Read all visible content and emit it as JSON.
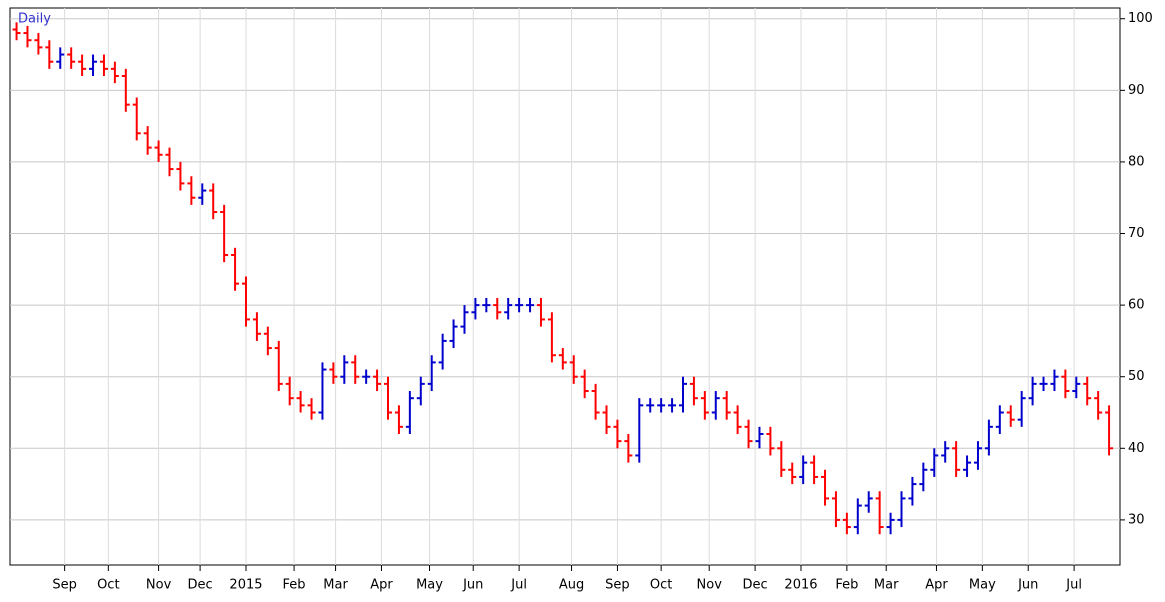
{
  "chart_data": {
    "type": "ohlc",
    "title": "Daily",
    "x": [
      0,
      5,
      10,
      15,
      20,
      25,
      30,
      35,
      40,
      45,
      50,
      55,
      60,
      65,
      70,
      75,
      80,
      85,
      90,
      95,
      100,
      105,
      110,
      115,
      120,
      125,
      130,
      135,
      140,
      145,
      150,
      155,
      160,
      165,
      170,
      175,
      180,
      185,
      190,
      195,
      200,
      205,
      210,
      215,
      220,
      225,
      230,
      235,
      240,
      245,
      250,
      255,
      260,
      265,
      270,
      275,
      280,
      285,
      290,
      295,
      300,
      305,
      310,
      315,
      320,
      325,
      330,
      335,
      340,
      345,
      350,
      355,
      360,
      365,
      370,
      375,
      380,
      385,
      390,
      395,
      400,
      405,
      410,
      415,
      420,
      425,
      430,
      435,
      440,
      445,
      450,
      455,
      460,
      465,
      470,
      475,
      480,
      485,
      490,
      495,
      500
    ],
    "open": [
      98.5,
      98,
      97,
      96,
      94,
      95,
      94,
      93,
      94,
      93,
      92,
      88,
      84,
      82,
      81,
      79,
      77,
      75,
      76,
      73,
      67,
      63,
      58,
      56,
      54,
      49,
      47,
      46,
      45,
      51,
      50,
      52,
      50,
      50,
      49,
      45,
      43,
      47,
      49,
      52,
      55,
      57,
      59,
      60,
      60,
      59,
      60,
      60,
      60,
      58,
      53,
      52,
      50,
      48,
      45,
      43,
      41,
      39,
      46,
      46,
      46,
      46,
      49,
      47,
      45,
      47,
      45,
      43,
      41,
      42,
      40,
      37,
      36,
      38,
      36,
      33,
      30,
      29,
      32,
      33,
      29,
      30,
      33,
      35,
      37,
      39,
      40,
      37,
      38,
      40,
      43,
      45,
      44,
      47,
      49,
      49,
      50,
      48,
      49,
      47,
      45
    ],
    "high": [
      99.5,
      99,
      98,
      97,
      96,
      96,
      95,
      95,
      95,
      94,
      93,
      89,
      85,
      83,
      82,
      80,
      78,
      77,
      77,
      74,
      68,
      64,
      59,
      57,
      55,
      50,
      48,
      47,
      52,
      52,
      53,
      53,
      51,
      51,
      50,
      46,
      48,
      50,
      53,
      56,
      58,
      60,
      61,
      61,
      61,
      61,
      61,
      61,
      61,
      59,
      54,
      53,
      51,
      49,
      46,
      44,
      42,
      47,
      47,
      47,
      47,
      50,
      50,
      48,
      48,
      48,
      46,
      44,
      43,
      43,
      41,
      38,
      39,
      39,
      37,
      34,
      31,
      33,
      34,
      34,
      31,
      34,
      36,
      38,
      40,
      41,
      41,
      39,
      41,
      44,
      46,
      46,
      48,
      50,
      50,
      51,
      51,
      50,
      50,
      48,
      46
    ],
    "low": [
      97,
      96,
      95,
      93,
      93,
      93,
      92,
      92,
      92,
      91,
      87,
      83,
      81,
      80,
      78,
      76,
      74,
      74,
      72,
      66,
      62,
      57,
      55,
      53,
      48,
      46,
      45,
      44,
      44,
      49,
      49,
      49,
      49,
      48,
      44,
      42,
      42,
      46,
      48,
      51,
      54,
      56,
      58,
      59,
      58,
      58,
      59,
      59,
      57,
      52,
      51,
      49,
      47,
      44,
      42,
      40,
      38,
      38,
      45,
      45,
      45,
      45,
      46,
      44,
      44,
      44,
      42,
      40,
      40,
      39,
      36,
      35,
      35,
      35,
      32,
      29,
      28,
      28,
      31,
      28,
      28,
      29,
      32,
      34,
      36,
      38,
      36,
      36,
      37,
      39,
      42,
      43,
      43,
      46,
      48,
      48,
      47,
      47,
      46,
      44,
      39
    ],
    "close": [
      98,
      97,
      96,
      94,
      95,
      94,
      93,
      94,
      93,
      92,
      88,
      84,
      82,
      81,
      79,
      77,
      75,
      76,
      73,
      67,
      63,
      58,
      56,
      54,
      49,
      47,
      46,
      45,
      51,
      50,
      52,
      50,
      50,
      49,
      45,
      43,
      47,
      49,
      52,
      55,
      57,
      59,
      60,
      60,
      59,
      60,
      60,
      60,
      58,
      53,
      52,
      50,
      48,
      45,
      43,
      41,
      39,
      46,
      46,
      46,
      46,
      49,
      47,
      45,
      47,
      45,
      43,
      41,
      42,
      40,
      37,
      36,
      38,
      36,
      33,
      30,
      29,
      32,
      33,
      29,
      30,
      33,
      35,
      37,
      39,
      40,
      37,
      38,
      40,
      43,
      45,
      44,
      47,
      49,
      49,
      50,
      48,
      49,
      47,
      45,
      40
    ],
    "up_color": "#0000cc",
    "down_color": "#ff0000",
    "xlim": [
      -3,
      505
    ],
    "xticks": [
      {
        "value": 22,
        "label": "Sep"
      },
      {
        "value": 42,
        "label": "Oct"
      },
      {
        "value": 65,
        "label": "Nov"
      },
      {
        "value": 84,
        "label": "Dec"
      },
      {
        "value": 105,
        "label": "2015"
      },
      {
        "value": 127,
        "label": "Feb"
      },
      {
        "value": 146,
        "label": "Mar"
      },
      {
        "value": 167,
        "label": "Apr"
      },
      {
        "value": 189,
        "label": "May"
      },
      {
        "value": 209,
        "label": "Jun"
      },
      {
        "value": 230,
        "label": "Jul"
      },
      {
        "value": 254,
        "label": "Aug"
      },
      {
        "value": 275,
        "label": "Sep"
      },
      {
        "value": 295,
        "label": "Oct"
      },
      {
        "value": 317,
        "label": "Nov"
      },
      {
        "value": 338,
        "label": "Dec"
      },
      {
        "value": 359,
        "label": "2016"
      },
      {
        "value": 380,
        "label": "Feb"
      },
      {
        "value": 398,
        "label": "Mar"
      },
      {
        "value": 421,
        "label": "Apr"
      },
      {
        "value": 442,
        "label": "May"
      },
      {
        "value": 463,
        "label": "Jun"
      },
      {
        "value": 484,
        "label": "Jul"
      }
    ],
    "ylim": [
      23.7,
      101.5
    ],
    "yticks": [
      30,
      40,
      50,
      60,
      70,
      80,
      90,
      100
    ],
    "y_axis_side": "right",
    "grid": true
  }
}
